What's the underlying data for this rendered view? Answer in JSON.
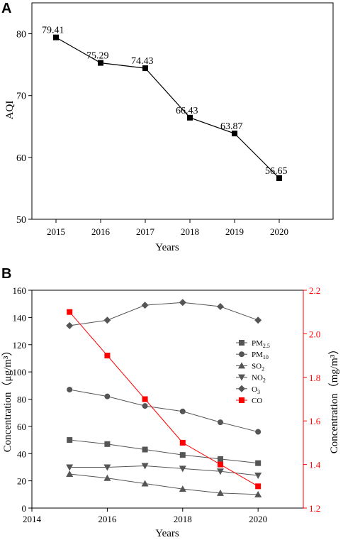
{
  "chart_data": [
    {
      "panel_label": "A",
      "type": "line",
      "xlabel": "Years",
      "ylabel": "AQI",
      "x": [
        2015,
        2016,
        2017,
        2018,
        2019,
        2020
      ],
      "x_ticks": [
        "2015",
        "2016",
        "2017",
        "2018",
        "2019",
        "2020"
      ],
      "values": [
        79.41,
        75.29,
        74.43,
        66.43,
        63.87,
        56.65
      ],
      "data_labels": [
        "79.41",
        "75.29",
        "74.43",
        "66.43",
        "63.87",
        "56.65"
      ],
      "ylim": [
        50,
        85
      ],
      "y_ticks": [
        50,
        60,
        70,
        80
      ],
      "marker": "square",
      "color": "#000000"
    },
    {
      "panel_label": "B",
      "type": "line",
      "xlabel": "Years",
      "ylabel_left": "Concentration（μg/m³）",
      "ylabel_right": "Concentration（mg/m³）",
      "xlim": [
        2014,
        2021.2
      ],
      "x_ticks": [
        2014,
        2016,
        2018,
        2020
      ],
      "ylim_left": [
        0,
        160
      ],
      "y_ticks_left": [
        0,
        20,
        40,
        60,
        80,
        100,
        120,
        140,
        160
      ],
      "ylim_right": [
        1.2,
        2.2
      ],
      "y_ticks_right": [
        "1.2",
        "1.4",
        "1.6",
        "1.8",
        "2.0",
        "2.2"
      ],
      "right_axis_color": "#ff0000",
      "x": [
        2015,
        2016,
        2017,
        2018,
        2019,
        2020
      ],
      "series": [
        {
          "name": "PM2.5",
          "label_main": "PM",
          "label_sub": "2.5",
          "axis": "left",
          "marker": "square",
          "color": "#555555",
          "values": [
            50,
            47,
            43,
            39,
            36,
            33
          ]
        },
        {
          "name": "PM10",
          "label_main": "PM",
          "label_sub": "10",
          "axis": "left",
          "marker": "circle",
          "color": "#555555",
          "values": [
            87,
            82,
            75,
            71,
            63,
            56
          ]
        },
        {
          "name": "SO2",
          "label_main": "SO",
          "label_sub": "2",
          "axis": "left",
          "marker": "triangle-up",
          "color": "#555555",
          "values": [
            25,
            22,
            18,
            14,
            11,
            10
          ]
        },
        {
          "name": "NO2",
          "label_main": "NO",
          "label_sub": "2",
          "axis": "left",
          "marker": "triangle-down",
          "color": "#555555",
          "values": [
            30,
            30,
            31,
            29,
            27,
            24
          ]
        },
        {
          "name": "O3",
          "label_main": "O",
          "label_sub": "3",
          "axis": "left",
          "marker": "diamond",
          "color": "#555555",
          "values": [
            134,
            138,
            149,
            151,
            148,
            138
          ]
        },
        {
          "name": "CO",
          "label_main": "CO",
          "label_sub": "",
          "axis": "right",
          "marker": "square",
          "color": "#ff0000",
          "values": [
            2.1,
            1.9,
            1.7,
            1.5,
            1.4,
            1.3
          ]
        }
      ],
      "legend_position": "right"
    }
  ]
}
